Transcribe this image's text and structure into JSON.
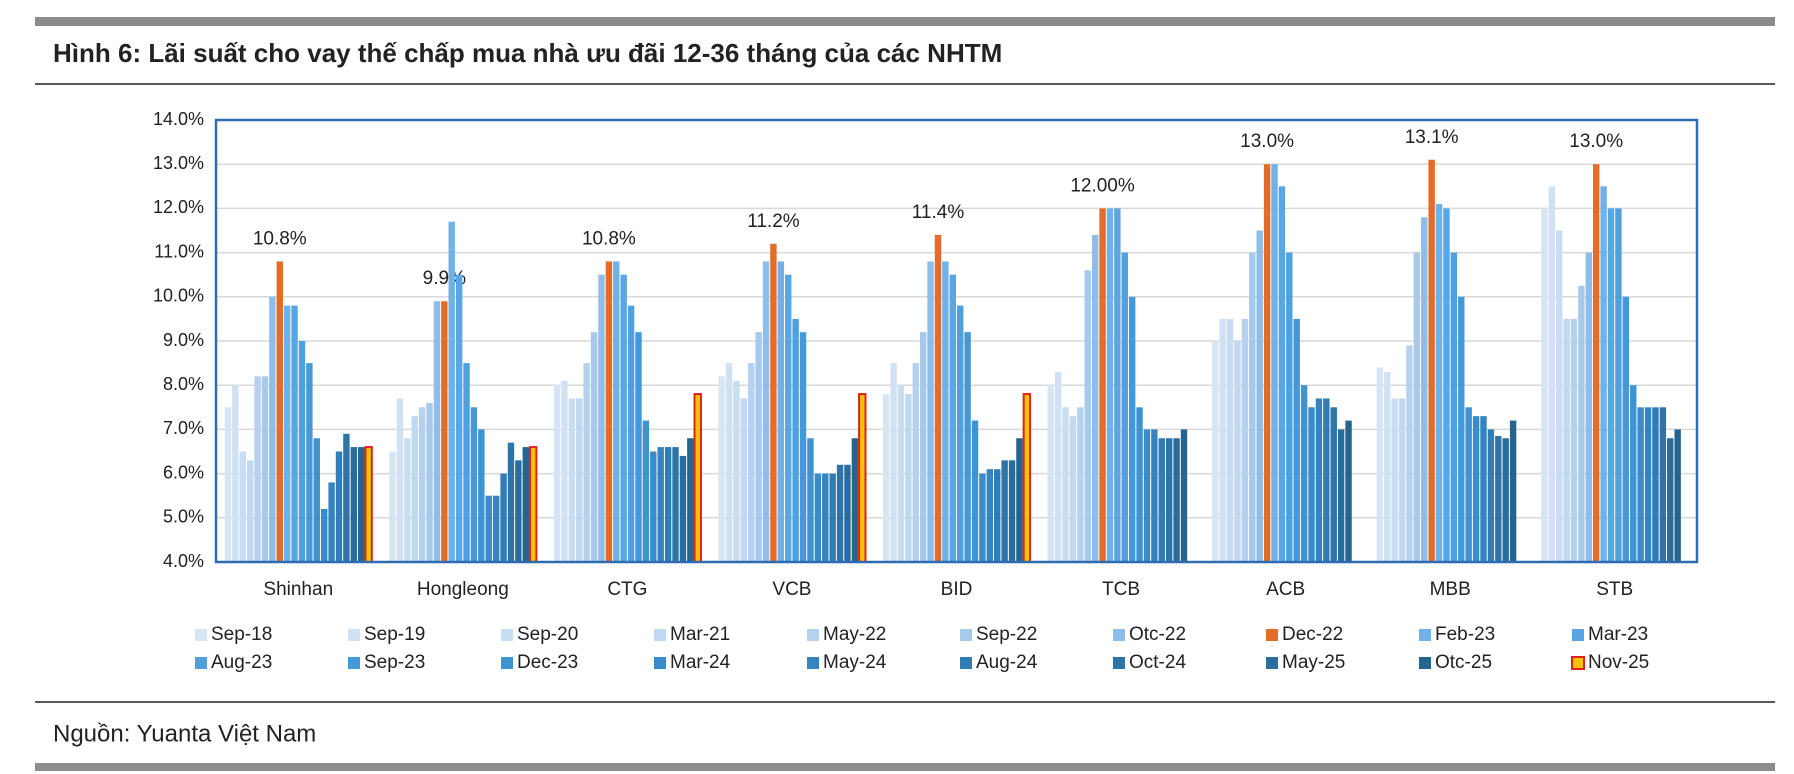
{
  "chart_data": {
    "type": "bar",
    "title": "Hình 6: Lãi suất cho vay thế chấp mua nhà ưu đãi 12-36 tháng của các NHTM",
    "source": "Nguồn: Yuanta Việt Nam",
    "categories": [
      "Shinhan",
      "Hongleong",
      "CTG",
      "VCB",
      "BID",
      "TCB",
      "ACB",
      "MBB",
      "STB"
    ],
    "ylim": [
      4,
      14
    ],
    "yticks": [
      {
        "value": 4,
        "label": "4.0%"
      },
      {
        "value": 5,
        "label": "5.0%"
      },
      {
        "value": 6,
        "label": "6.0%"
      },
      {
        "value": 7,
        "label": "7.0%"
      },
      {
        "value": 8,
        "label": "8.0%"
      },
      {
        "value": 9,
        "label": "9.0%"
      },
      {
        "value": 10,
        "label": "10.0%"
      },
      {
        "value": 11,
        "label": "11.0%"
      },
      {
        "value": 12,
        "label": "12.0%"
      },
      {
        "value": 13,
        "label": "13.0%"
      },
      {
        "value": 14,
        "label": "14.0%"
      }
    ],
    "grid": true,
    "series": [
      {
        "name": "Sep-18",
        "color": "#d6e5f4",
        "values": [
          7.5,
          6.5,
          8.0,
          8.2,
          7.8,
          8.0,
          9.0,
          8.4,
          12.0
        ]
      },
      {
        "name": "Sep-19",
        "color": "#d0e1f3",
        "values": [
          8.0,
          7.7,
          8.1,
          8.5,
          8.5,
          8.3,
          9.5,
          8.3,
          12.5
        ]
      },
      {
        "name": "Sep-20",
        "color": "#c9ddf2",
        "values": [
          6.5,
          6.8,
          7.7,
          8.1,
          8.0,
          7.5,
          9.5,
          7.7,
          11.5
        ]
      },
      {
        "name": "Mar-21",
        "color": "#c0d8f0",
        "values": [
          6.3,
          7.3,
          7.7,
          7.7,
          7.8,
          7.3,
          9.0,
          7.7,
          9.5
        ]
      },
      {
        "name": "May-22",
        "color": "#b5d1ee",
        "values": [
          8.2,
          7.5,
          8.5,
          8.5,
          8.5,
          7.5,
          9.5,
          8.9,
          9.5
        ]
      },
      {
        "name": "Sep-22",
        "color": "#a7c9ec",
        "values": [
          8.2,
          7.6,
          9.2,
          9.2,
          9.2,
          10.6,
          11.0,
          11.0,
          10.25
        ]
      },
      {
        "name": "Otc-22",
        "color": "#8fbde9",
        "values": [
          10.0,
          9.9,
          10.5,
          10.8,
          10.8,
          11.4,
          11.5,
          11.8,
          11.0
        ]
      },
      {
        "name": "Dec-22",
        "color": "#e46c2a",
        "values": [
          10.8,
          9.9,
          10.8,
          11.2,
          11.4,
          12.0,
          13.0,
          13.1,
          13.0
        ],
        "value_labels": [
          "10.8%",
          "9.9%",
          "10.8%",
          "11.2%",
          "11.4%",
          "12.00%",
          "13.0%",
          "13.1%",
          "13.0%"
        ]
      },
      {
        "name": "Feb-23",
        "color": "#6fb1e8",
        "values": [
          9.8,
          11.7,
          10.8,
          10.8,
          10.8,
          12.0,
          13.0,
          12.1,
          12.5
        ]
      },
      {
        "name": "Mar-23",
        "color": "#5aa6e3",
        "values": [
          9.8,
          10.5,
          10.5,
          10.5,
          10.5,
          12.0,
          12.5,
          12.0,
          12.0
        ]
      },
      {
        "name": "Aug-23",
        "color": "#4fa0df",
        "values": [
          9.0,
          8.5,
          9.8,
          9.5,
          9.8,
          11.0,
          11.0,
          11.0,
          12.0
        ]
      },
      {
        "name": "Sep-23",
        "color": "#4599d9",
        "values": [
          8.5,
          7.5,
          9.2,
          9.2,
          9.2,
          10.0,
          9.5,
          10.0,
          10.0
        ]
      },
      {
        "name": "Dec-23",
        "color": "#3e93d3",
        "values": [
          6.8,
          7.0,
          7.2,
          6.8,
          7.2,
          7.5,
          8.0,
          7.5,
          8.0
        ]
      },
      {
        "name": "Mar-24",
        "color": "#398bc9",
        "values": [
          5.2,
          5.5,
          6.5,
          6.0,
          6.0,
          7.0,
          7.5,
          7.3,
          7.5
        ]
      },
      {
        "name": "May-24",
        "color": "#3584bf",
        "values": [
          5.8,
          5.5,
          6.6,
          6.0,
          6.1,
          7.0,
          7.7,
          7.3,
          7.5
        ]
      },
      {
        "name": "Aug-24",
        "color": "#317cb4",
        "values": [
          6.5,
          6.0,
          6.6,
          6.0,
          6.1,
          6.8,
          7.7,
          7.0,
          7.5
        ]
      },
      {
        "name": "Oct-24",
        "color": "#2e74a8",
        "values": [
          6.9,
          6.7,
          6.6,
          6.2,
          6.3,
          6.8,
          7.5,
          6.85,
          7.5
        ]
      },
      {
        "name": "May-25",
        "color": "#2a6c9c",
        "values": [
          6.6,
          6.3,
          6.4,
          6.2,
          6.3,
          6.8,
          7.0,
          6.8,
          6.8
        ]
      },
      {
        "name": "Otc-25",
        "color": "#266490",
        "values": [
          6.6,
          6.6,
          6.8,
          6.8,
          6.8,
          7.0,
          7.2,
          7.2,
          7.0
        ]
      },
      {
        "name": "Nov-25",
        "color": "#f5c400",
        "edgecolor": "#e02020",
        "values": [
          6.6,
          6.6,
          7.8,
          7.8,
          7.8,
          null,
          null,
          null,
          null
        ]
      }
    ]
  }
}
